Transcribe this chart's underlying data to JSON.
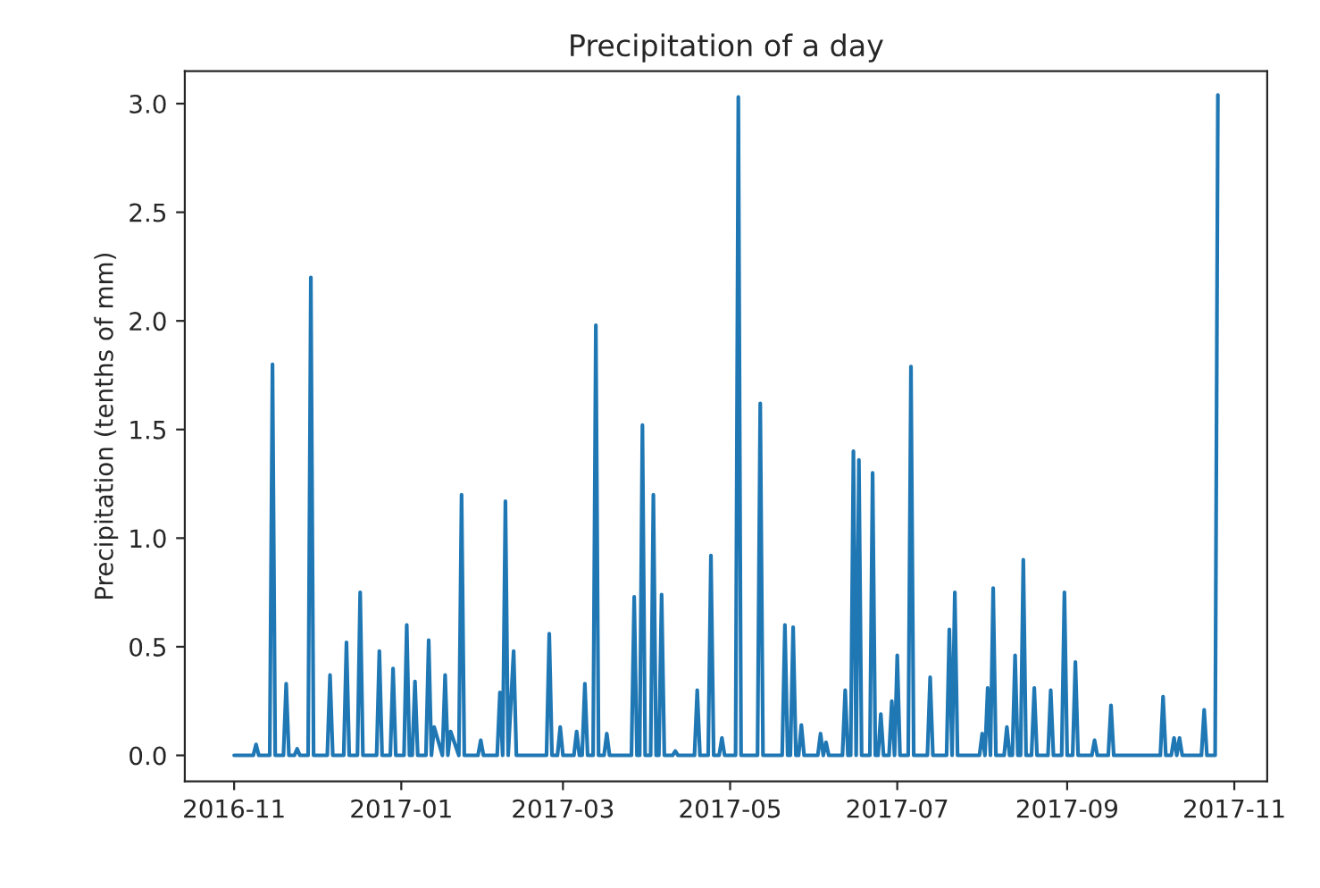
{
  "chart_data": {
    "type": "line",
    "title": "Precipitation of a day",
    "ylabel": "Precipitation (tenths of mm)",
    "series": [
      {
        "color": "#1f77b4",
        "x": [
          "2016-11-01",
          "2016-11-08",
          "2016-11-09",
          "2016-11-10",
          "2016-11-14",
          "2016-11-15",
          "2016-11-16",
          "2016-11-19",
          "2016-11-20",
          "2016-11-21",
          "2016-11-23",
          "2016-11-24",
          "2016-11-25",
          "2016-11-28",
          "2016-11-29",
          "2016-11-30",
          "2016-12-05",
          "2016-12-06",
          "2016-12-07",
          "2016-12-11",
          "2016-12-12",
          "2016-12-13",
          "2016-12-16",
          "2016-12-17",
          "2016-12-18",
          "2016-12-23",
          "2016-12-24",
          "2016-12-25",
          "2016-12-28",
          "2016-12-29",
          "2016-12-30",
          "2017-01-02",
          "2017-01-03",
          "2017-01-04",
          "2017-01-05",
          "2017-01-06",
          "2017-01-07",
          "2017-01-10",
          "2017-01-11",
          "2017-01-12",
          "2017-01-13",
          "2017-01-16",
          "2017-01-17",
          "2017-01-18",
          "2017-01-19",
          "2017-01-22",
          "2017-01-23",
          "2017-01-24",
          "2017-01-29",
          "2017-01-30",
          "2017-01-31",
          "2017-02-05",
          "2017-02-06",
          "2017-02-07",
          "2017-02-08",
          "2017-02-09",
          "2017-02-11",
          "2017-02-12",
          "2017-02-23",
          "2017-02-24",
          "2017-02-25",
          "2017-02-27",
          "2017-02-28",
          "2017-03-01",
          "2017-03-05",
          "2017-03-06",
          "2017-03-07",
          "2017-03-08",
          "2017-03-09",
          "2017-03-10",
          "2017-03-12",
          "2017-03-13",
          "2017-03-14",
          "2017-03-16",
          "2017-03-17",
          "2017-03-18",
          "2017-03-26",
          "2017-03-27",
          "2017-03-28",
          "2017-03-29",
          "2017-03-30",
          "2017-03-31",
          "2017-04-02",
          "2017-04-03",
          "2017-04-04",
          "2017-04-05",
          "2017-04-06",
          "2017-04-07",
          "2017-04-10",
          "2017-04-11",
          "2017-04-12",
          "2017-04-18",
          "2017-04-19",
          "2017-04-20",
          "2017-04-23",
          "2017-04-24",
          "2017-04-25",
          "2017-04-27",
          "2017-04-28",
          "2017-04-29",
          "2017-05-03",
          "2017-05-04",
          "2017-05-05",
          "2017-05-11",
          "2017-05-12",
          "2017-05-13",
          "2017-05-20",
          "2017-05-21",
          "2017-05-22",
          "2017-05-23",
          "2017-05-24",
          "2017-05-25",
          "2017-05-26",
          "2017-05-27",
          "2017-05-28",
          "2017-06-02",
          "2017-06-03",
          "2017-06-04",
          "2017-06-05",
          "2017-06-06",
          "2017-06-11",
          "2017-06-12",
          "2017-06-13",
          "2017-06-14",
          "2017-06-15",
          "2017-06-16",
          "2017-06-17",
          "2017-06-18",
          "2017-06-21",
          "2017-06-22",
          "2017-06-23",
          "2017-06-24",
          "2017-06-25",
          "2017-06-26",
          "2017-06-28",
          "2017-06-29",
          "2017-06-30",
          "2017-07-01",
          "2017-07-02",
          "2017-07-05",
          "2017-07-06",
          "2017-07-07",
          "2017-07-12",
          "2017-07-13",
          "2017-07-14",
          "2017-07-19",
          "2017-07-20",
          "2017-07-21",
          "2017-07-22",
          "2017-07-23",
          "2017-07-31",
          "2017-08-01",
          "2017-08-02",
          "2017-08-03",
          "2017-08-04",
          "2017-08-05",
          "2017-08-06",
          "2017-08-09",
          "2017-08-10",
          "2017-08-11",
          "2017-08-12",
          "2017-08-13",
          "2017-08-14",
          "2017-08-15",
          "2017-08-16",
          "2017-08-17",
          "2017-08-19",
          "2017-08-20",
          "2017-08-21",
          "2017-08-25",
          "2017-08-26",
          "2017-08-27",
          "2017-08-30",
          "2017-08-31",
          "2017-09-01",
          "2017-09-03",
          "2017-09-04",
          "2017-09-05",
          "2017-09-10",
          "2017-09-11",
          "2017-09-12",
          "2017-09-16",
          "2017-09-17",
          "2017-09-18",
          "2017-10-05",
          "2017-10-06",
          "2017-10-07",
          "2017-10-09",
          "2017-10-10",
          "2017-10-11",
          "2017-10-12",
          "2017-10-13",
          "2017-10-20",
          "2017-10-21",
          "2017-10-22",
          "2017-10-25",
          "2017-10-26"
        ],
        "values": [
          0,
          0,
          0.05,
          0,
          0,
          1.8,
          0,
          0,
          0.33,
          0,
          0,
          0.03,
          0,
          0,
          2.2,
          0,
          0,
          0.37,
          0,
          0,
          0.52,
          0,
          0,
          0.75,
          0,
          0,
          0.48,
          0,
          0,
          0.4,
          0,
          0,
          0.6,
          0,
          0,
          0.34,
          0,
          0,
          0.53,
          0,
          0.13,
          0,
          0.37,
          0,
          0.11,
          0,
          1.2,
          0,
          0,
          0.07,
          0,
          0,
          0.29,
          0,
          1.17,
          0,
          0.48,
          0,
          0,
          0.56,
          0,
          0,
          0.13,
          0,
          0,
          0.11,
          0,
          0,
          0.33,
          0,
          0,
          1.98,
          0,
          0,
          0.1,
          0,
          0,
          0.73,
          0,
          0,
          1.52,
          0,
          0,
          1.2,
          0,
          0,
          0.74,
          0,
          0,
          0.02,
          0,
          0,
          0.3,
          0,
          0,
          0.92,
          0,
          0,
          0.08,
          0,
          0,
          3.03,
          0,
          0,
          1.62,
          0,
          0,
          0.6,
          0,
          0,
          0.59,
          0,
          0,
          0.14,
          0,
          0,
          0.1,
          0,
          0.06,
          0,
          0,
          0.3,
          0,
          0,
          1.4,
          0,
          1.36,
          0,
          0,
          1.3,
          0,
          0,
          0.19,
          0,
          0,
          0.25,
          0,
          0.46,
          0,
          0,
          1.79,
          0,
          0,
          0.36,
          0,
          0,
          0.58,
          0,
          0.75,
          0,
          0,
          0.1,
          0,
          0.31,
          0,
          0.77,
          0,
          0,
          0.13,
          0,
          0,
          0.46,
          0,
          0,
          0.9,
          0,
          0,
          0.31,
          0,
          0,
          0.3,
          0,
          0,
          0.75,
          0,
          0,
          0.43,
          0,
          0,
          0.07,
          0,
          0,
          0.23,
          0,
          0,
          0.27,
          0,
          0,
          0.08,
          0,
          0.08,
          0,
          0,
          0.21,
          0,
          0,
          3.04
        ]
      }
    ],
    "xlim": [
      "2016-10-14",
      "2017-11-13"
    ],
    "xticks": [
      "2016-11",
      "2017-01",
      "2017-03",
      "2017-05",
      "2017-07",
      "2017-09",
      "2017-11"
    ],
    "ylim": [
      -0.12,
      3.15
    ],
    "yticks": [
      {
        "value": 0,
        "label": "0.0"
      },
      {
        "value": 0.5,
        "label": "0.5"
      },
      {
        "value": 1,
        "label": "1.0"
      },
      {
        "value": 1.5,
        "label": "1.5"
      },
      {
        "value": 2,
        "label": "2.0"
      },
      {
        "value": 2.5,
        "label": "2.5"
      },
      {
        "value": 3,
        "label": "3.0"
      }
    ]
  }
}
